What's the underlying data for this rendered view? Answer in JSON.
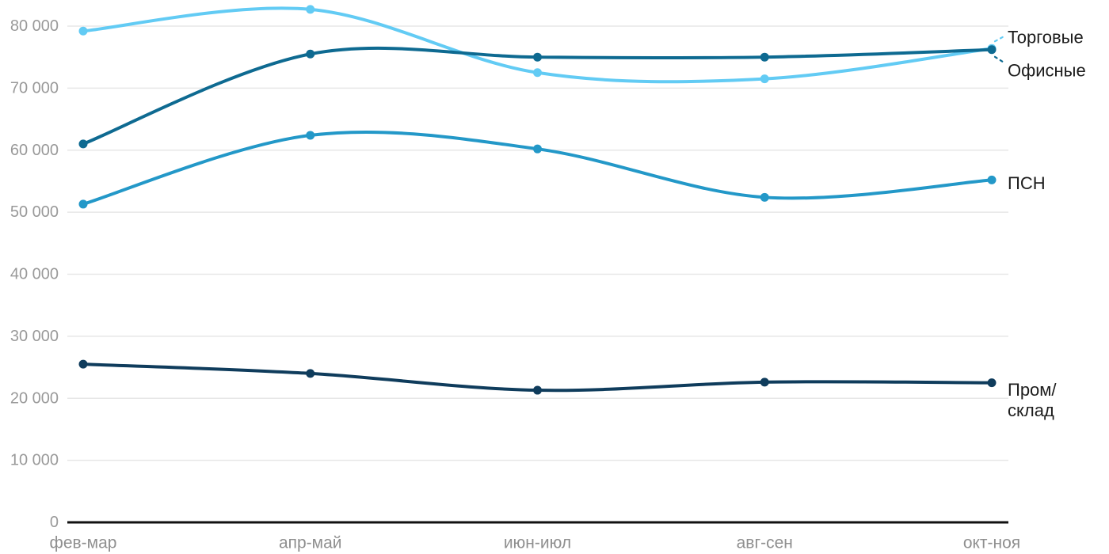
{
  "chart_data": {
    "type": "line",
    "title": "",
    "xlabel": "",
    "ylabel": "",
    "grid": true,
    "legend_position": "right-end-labels",
    "categories": [
      "фев-мар",
      "апр-май",
      "июн-июл",
      "авг-сен",
      "окт-ноя"
    ],
    "series": [
      {
        "key": "retail",
        "name": "Торговые",
        "color": "#62CBF4",
        "values": [
          79200,
          82700,
          72500,
          71500,
          76400
        ],
        "label_lines": [
          "Торговые"
        ],
        "label_dy": [
          -14
        ],
        "leader": true,
        "leader_dir": -1
      },
      {
        "key": "office",
        "name": "Офисные",
        "color": "#0E6A91",
        "values": [
          61000,
          75500,
          75000,
          75000,
          76200
        ],
        "label_lines": [
          "Офисные"
        ],
        "label_dy": [
          26
        ],
        "leader": true,
        "leader_dir": 1
      },
      {
        "key": "psn",
        "name": "ПСН",
        "color": "#2398C8",
        "values": [
          51300,
          62400,
          60200,
          52400,
          55200
        ],
        "label_lines": [
          "ПСН"
        ],
        "label_dy": [
          4
        ],
        "leader": false,
        "leader_dir": 0
      },
      {
        "key": "industrial",
        "name": "Пром/склад",
        "color": "#0F3C5C",
        "values": [
          25500,
          24000,
          21300,
          22600,
          22500
        ],
        "label_lines": [
          "Пром/",
          "склад"
        ],
        "label_dy": [
          9,
          35
        ],
        "leader": false,
        "leader_dir": 0
      }
    ],
    "y_axis": {
      "min": 0,
      "max": 80000,
      "tick_step": 10000,
      "tick_labels": [
        "0",
        "10 000",
        "20 000",
        "30 000",
        "40 000",
        "50 000",
        "60 000",
        "70 000",
        "80 000"
      ]
    },
    "colors": {
      "gridline": "#E7E7E7",
      "axis_line": "#111111",
      "tick_label": "#999999",
      "x_label": "#8F8F8F",
      "series_label": "#1C1C1C",
      "background": "#FFFFFF"
    }
  }
}
